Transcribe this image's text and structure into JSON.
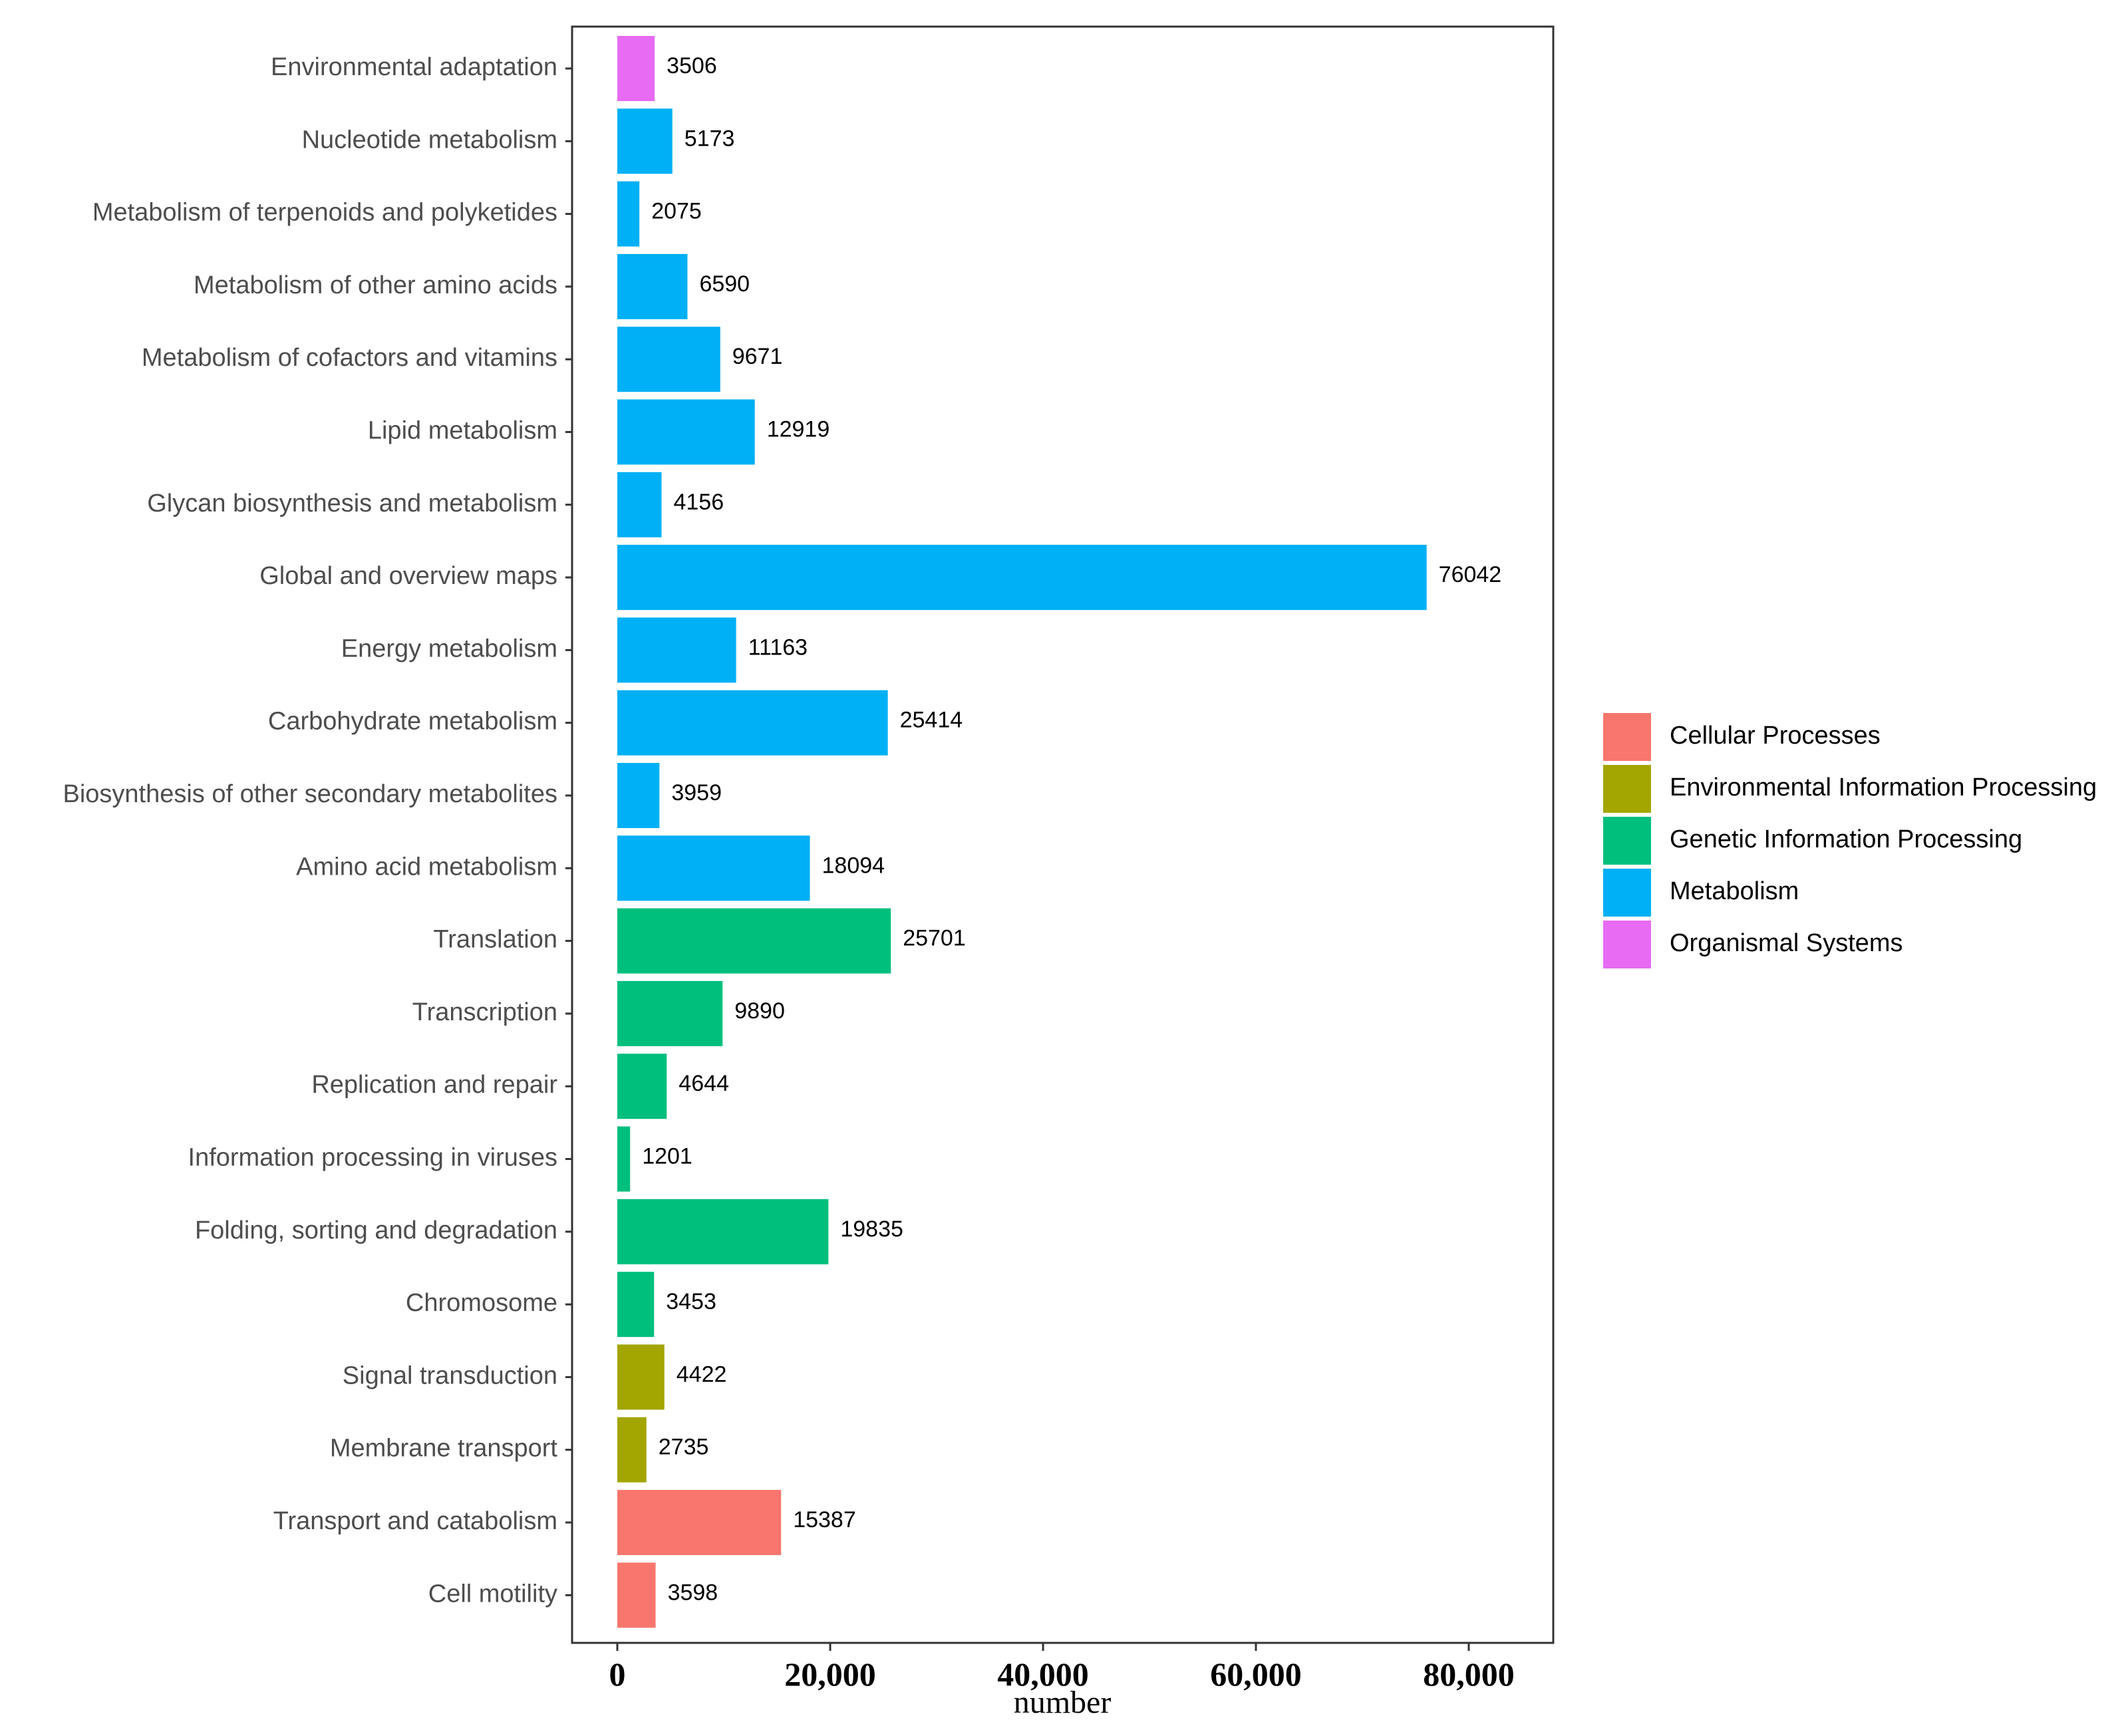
{
  "chart_data": {
    "type": "bar",
    "orientation": "horizontal",
    "title": "",
    "xlabel": "number",
    "ylabel": "",
    "xlim": [
      0,
      86000
    ],
    "xticks": [
      0,
      20000,
      40000,
      60000,
      80000
    ],
    "xtick_labels": [
      "0",
      "20,000",
      "40,000",
      "60,000",
      "80,000"
    ],
    "grid": false,
    "legend_position": "right",
    "legend": [
      {
        "label": "Cellular Processes",
        "color": "#F8766D"
      },
      {
        "label": "Environmental Information Processing",
        "color": "#A3A500"
      },
      {
        "label": "Genetic Information Processing",
        "color": "#00BF7D"
      },
      {
        "label": "Metabolism",
        "color": "#00B0F6"
      },
      {
        "label": "Organismal Systems",
        "color": "#E76BF3"
      }
    ],
    "bars": [
      {
        "category": "Environmental adaptation",
        "value": 3506,
        "value_label": "3506",
        "group": "Organismal Systems"
      },
      {
        "category": "Nucleotide metabolism",
        "value": 5173,
        "value_label": "5173",
        "group": "Metabolism"
      },
      {
        "category": "Metabolism of terpenoids and polyketides",
        "value": 2075,
        "value_label": "2075",
        "group": "Metabolism"
      },
      {
        "category": "Metabolism of other amino acids",
        "value": 6590,
        "value_label": "6590",
        "group": "Metabolism"
      },
      {
        "category": "Metabolism of cofactors and vitamins",
        "value": 9671,
        "value_label": "9671",
        "group": "Metabolism"
      },
      {
        "category": "Lipid metabolism",
        "value": 12919,
        "value_label": "12919",
        "group": "Metabolism"
      },
      {
        "category": "Glycan biosynthesis and metabolism",
        "value": 4156,
        "value_label": "4156",
        "group": "Metabolism"
      },
      {
        "category": "Global and overview maps",
        "value": 76042,
        "value_label": "76042",
        "group": "Metabolism"
      },
      {
        "category": "Energy metabolism",
        "value": 11163,
        "value_label": "11163",
        "group": "Metabolism"
      },
      {
        "category": "Carbohydrate metabolism",
        "value": 25414,
        "value_label": "25414",
        "group": "Metabolism"
      },
      {
        "category": "Biosynthesis of other secondary metabolites",
        "value": 3959,
        "value_label": "3959",
        "group": "Metabolism"
      },
      {
        "category": "Amino acid metabolism",
        "value": 18094,
        "value_label": "18094",
        "group": "Metabolism"
      },
      {
        "category": "Translation",
        "value": 25701,
        "value_label": "25701",
        "group": "Genetic Information Processing"
      },
      {
        "category": "Transcription",
        "value": 9890,
        "value_label": "9890",
        "group": "Genetic Information Processing"
      },
      {
        "category": "Replication and repair",
        "value": 4644,
        "value_label": "4644",
        "group": "Genetic Information Processing"
      },
      {
        "category": "Information processing in viruses",
        "value": 1201,
        "value_label": "1201",
        "group": "Genetic Information Processing"
      },
      {
        "category": "Folding, sorting and degradation",
        "value": 19835,
        "value_label": "19835",
        "group": "Genetic Information Processing"
      },
      {
        "category": "Chromosome",
        "value": 3453,
        "value_label": "3453",
        "group": "Genetic Information Processing"
      },
      {
        "category": "Signal transduction",
        "value": 4422,
        "value_label": "4422",
        "group": "Environmental Information Processing"
      },
      {
        "category": "Membrane transport",
        "value": 2735,
        "value_label": "2735",
        "group": "Environmental Information Processing"
      },
      {
        "category": "Transport and catabolism",
        "value": 15387,
        "value_label": "15387",
        "group": "Cellular Processes"
      },
      {
        "category": "Cell motility",
        "value": 3598,
        "value_label": "3598",
        "group": "Cellular Processes"
      }
    ]
  }
}
